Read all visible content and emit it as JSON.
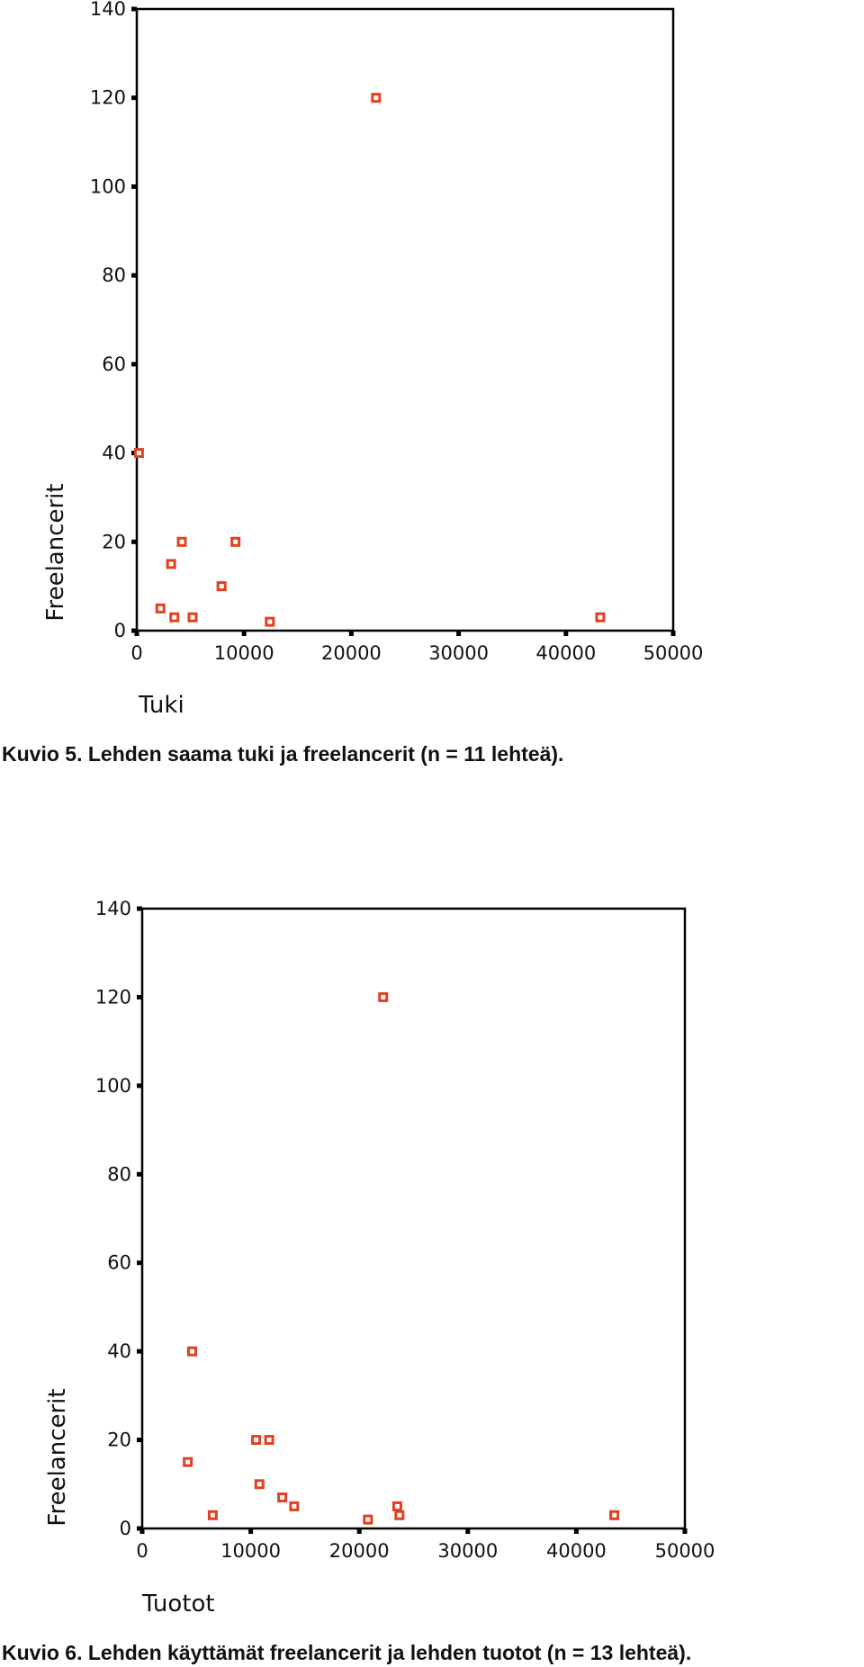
{
  "chart_data": [
    {
      "type": "scatter",
      "x_label": "Tuki",
      "y_label": "Freelancerit",
      "caption": "Kuvio 5. Lehden saama tuki ja freelancerit (n = 11 lehteä).",
      "color": "#e2401e",
      "x": [
        22300,
        200,
        2200,
        3200,
        4200,
        3500,
        5200,
        7900,
        9200,
        12400,
        43200
      ],
      "values": [
        120,
        40,
        5,
        15,
        20,
        3,
        3,
        10,
        20,
        2,
        3
      ],
      "xlim": [
        0,
        50000
      ],
      "xticks": [
        0,
        10000,
        20000,
        30000,
        40000,
        50000
      ],
      "ylim": [
        0,
        140
      ],
      "yticks": [
        0,
        20,
        40,
        60,
        80,
        100,
        120,
        140
      ]
    },
    {
      "type": "scatter",
      "x_label": "Tuotot",
      "y_label": "Freelancerit",
      "caption": "Kuvio 6. Lehden käyttämät freelancerit ja lehden tuotot (n = 13 lehteä).",
      "color": "#e2401e",
      "x": [
        22200,
        4600,
        4200,
        6500,
        10500,
        11700,
        10800,
        12900,
        14000,
        20800,
        23500,
        23700,
        43500
      ],
      "values": [
        120,
        40,
        15,
        3,
        20,
        20,
        10,
        7,
        5,
        2,
        5,
        3,
        3
      ],
      "xlim": [
        0,
        50000
      ],
      "xticks": [
        0,
        10000,
        20000,
        30000,
        40000,
        50000
      ],
      "ylim": [
        0,
        140
      ],
      "yticks": [
        0,
        20,
        40,
        60,
        80,
        100,
        120,
        140
      ]
    }
  ]
}
